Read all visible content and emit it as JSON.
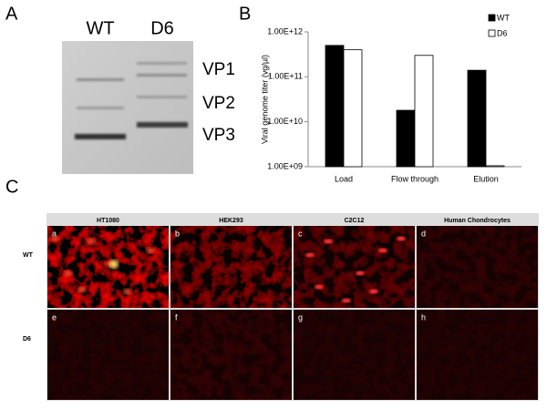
{
  "panel_a": {
    "label": "A",
    "lanes": [
      "WT",
      "D6"
    ],
    "bands": [
      "VP1",
      "VP2",
      "VP3"
    ]
  },
  "chart_data": {
    "type": "bar",
    "panel_label": "B",
    "y_label": "Viral genome titer (vg/µl)",
    "categories": [
      "Load",
      "Flow through",
      "Elution"
    ],
    "series": [
      {
        "name": "WT",
        "color": "#000000",
        "values": [
          500000000000,
          18000000000,
          140000000000
        ]
      },
      {
        "name": "D6",
        "color": "#ffffff",
        "values": [
          400000000000,
          300000000000,
          1050000000
        ]
      }
    ],
    "log_y": true,
    "ylim": [
      1000000000,
      1000000000000
    ],
    "yticks": [
      {
        "value": 1000000000,
        "label": "1.00E+09"
      },
      {
        "value": 10000000000,
        "label": "1.00E+10"
      },
      {
        "value": 100000000000,
        "label": "1.00E+11"
      },
      {
        "value": 1000000000000,
        "label": "1.00E+12"
      }
    ],
    "legend": "top-right"
  },
  "panel_c": {
    "label": "C",
    "columns": [
      "HT1080",
      "HEK293",
      "C2C12",
      "Human Chondrocytes"
    ],
    "rows": [
      "WT",
      "D6"
    ],
    "image_labels": [
      [
        "a",
        "b",
        "c",
        "d"
      ],
      [
        "e",
        "f",
        "g",
        "h"
      ]
    ]
  }
}
